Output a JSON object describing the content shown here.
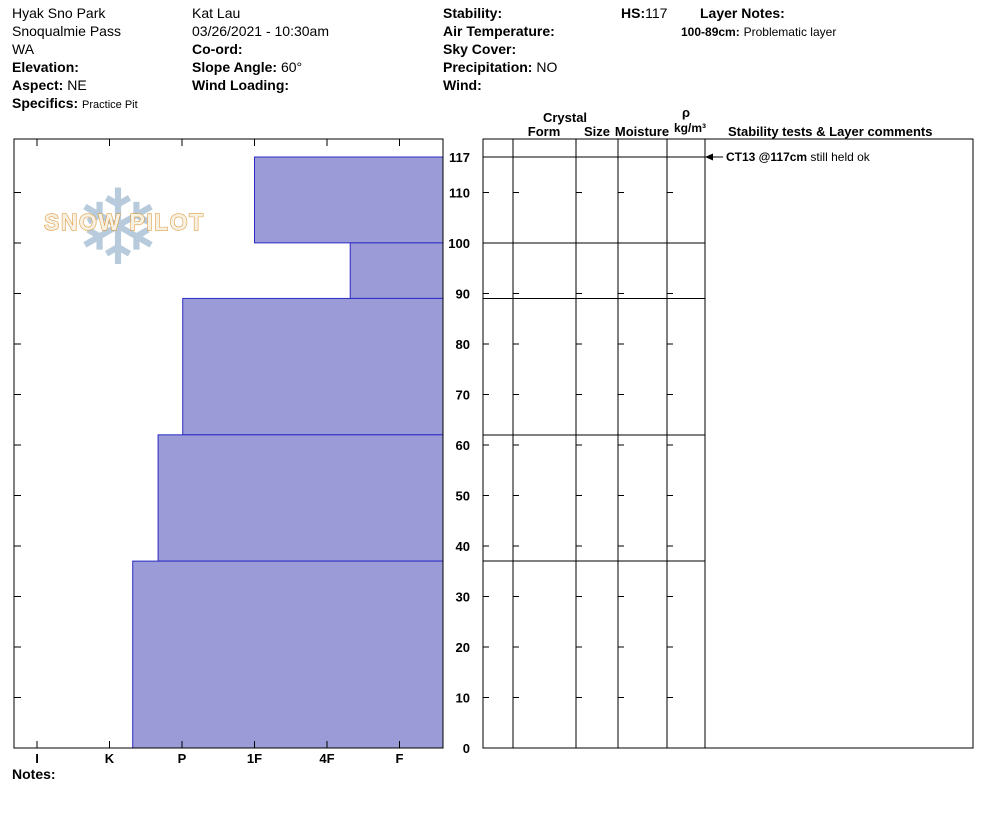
{
  "header": {
    "site_name": "Hyak Sno Park",
    "site_area": "Snoqualmie Pass",
    "site_state": "WA",
    "elevation_label": "Elevation:",
    "aspect_label": "Aspect:",
    "aspect_value": "NE",
    "specifics_label": "Specifics:",
    "specifics_value": "Practice Pit",
    "observer": "Kat Lau",
    "datetime": "03/26/2021 - 10:30am",
    "coord_label": "Co-ord:",
    "slope_angle_label": "Slope Angle:",
    "slope_angle_value": "60°",
    "wind_loading_label": "Wind Loading:",
    "stability_label": "Stability:",
    "air_temp_label": "Air Temperature:",
    "sky_cover_label": "Sky Cover:",
    "precipitation_label": "Precipitation:",
    "precipitation_value": "NO",
    "wind_label": "Wind:",
    "hs_label": "HS:",
    "hs_value": "117",
    "layer_notes_label": "Layer Notes:",
    "layer_note_depth": "100-89cm:",
    "layer_note_text": "Problematic layer"
  },
  "notes_label": "Notes:",
  "chart_data": {
    "type": "bar",
    "title": "Snow pit hardness profile",
    "orientation": "horizontal snow layers; bars anchored at soft (right) edge, harder layers extend further left",
    "hardness_axis": {
      "categories": [
        "I",
        "K",
        "P",
        "1F",
        "4F",
        "F"
      ],
      "note": "hand hardness scale, I=ice (hardest) to F=fist (softest)"
    },
    "depth_axis": {
      "unit": "cm",
      "min": 0,
      "max": 117,
      "tick_labels": [
        117,
        110,
        100,
        90,
        80,
        70,
        60,
        50,
        40,
        30,
        20,
        10,
        0
      ]
    },
    "total_snow_height_cm": 117,
    "layers": [
      {
        "top_cm": 117,
        "bottom_cm": 100,
        "hardness": "1F",
        "hardness_index": 3.0
      },
      {
        "top_cm": 100,
        "bottom_cm": 89,
        "hardness": "4F-F",
        "hardness_index": 4.32
      },
      {
        "top_cm": 89,
        "bottom_cm": 62,
        "hardness": "P",
        "hardness_index": 2.01
      },
      {
        "top_cm": 62,
        "bottom_cm": 37,
        "hardness": "P+",
        "hardness_index": 1.67
      },
      {
        "top_cm": 37,
        "bottom_cm": 0,
        "hardness": "K-P",
        "hardness_index": 1.32
      }
    ],
    "table": {
      "crystal_group_label": "Crystal",
      "form_label": "Form",
      "size_label": "Size",
      "moisture_label": "Moisture",
      "density_symbol": "ρ",
      "density_unit": "kg/m³",
      "comments_header": "Stability tests & Layer comments"
    },
    "annotations": [
      {
        "depth_cm": 117,
        "test": "CT13 @117cm",
        "comment": "still held ok"
      }
    ],
    "colors": {
      "layer_fill": "#9b9bd8",
      "layer_stroke": "#2b2bc4",
      "logo_snowflake": "#b7cbdc",
      "logo_text_fill": "#f7f1e4",
      "logo_text_stroke": "#de9b3e"
    },
    "logo": {
      "snowflake": "❄",
      "text": "SNOW PILOT"
    }
  }
}
